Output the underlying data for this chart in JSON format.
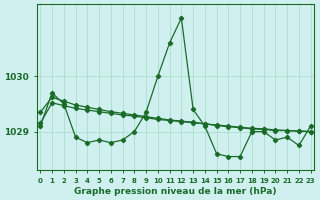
{
  "xlabel": "Graphe pression niveau de la mer (hPa)",
  "ylabel": "",
  "bg_color": "#cff0ee",
  "plot_bg_color": "#cff0ee",
  "grid_color": "#aaddcc",
  "line_color": "#1a6b2a",
  "x_ticks": [
    0,
    1,
    2,
    3,
    4,
    5,
    6,
    7,
    8,
    9,
    10,
    11,
    12,
    13,
    14,
    15,
    16,
    17,
    18,
    19,
    20,
    21,
    22,
    23
  ],
  "y_ticks": [
    1029,
    1030
  ],
  "ylim": [
    1028.3,
    1031.3
  ],
  "xlim": [
    -0.3,
    23.3
  ],
  "series1": [
    1029.1,
    1029.7,
    1029.5,
    1028.9,
    1028.8,
    1028.85,
    1028.8,
    1028.85,
    1029.0,
    1029.35,
    1030.0,
    1030.6,
    1031.05,
    1029.4,
    1029.1,
    1028.6,
    1028.55,
    1028.55,
    1029.0,
    1029.0,
    1028.85,
    1028.9,
    1028.75,
    1029.1
  ],
  "series2": [
    1029.35,
    1029.62,
    1029.55,
    1029.48,
    1029.44,
    1029.4,
    1029.36,
    1029.33,
    1029.3,
    1029.27,
    1029.24,
    1029.21,
    1029.19,
    1029.17,
    1029.14,
    1029.12,
    1029.1,
    1029.08,
    1029.06,
    1029.05,
    1029.03,
    1029.02,
    1029.01,
    1029.0
  ],
  "series3": [
    1029.15,
    1029.52,
    1029.47,
    1029.42,
    1029.39,
    1029.36,
    1029.33,
    1029.3,
    1029.28,
    1029.25,
    1029.22,
    1029.2,
    1029.18,
    1029.16,
    1029.14,
    1029.11,
    1029.09,
    1029.07,
    1029.05,
    1029.04,
    1029.02,
    1029.02,
    1029.01,
    1029.0
  ]
}
